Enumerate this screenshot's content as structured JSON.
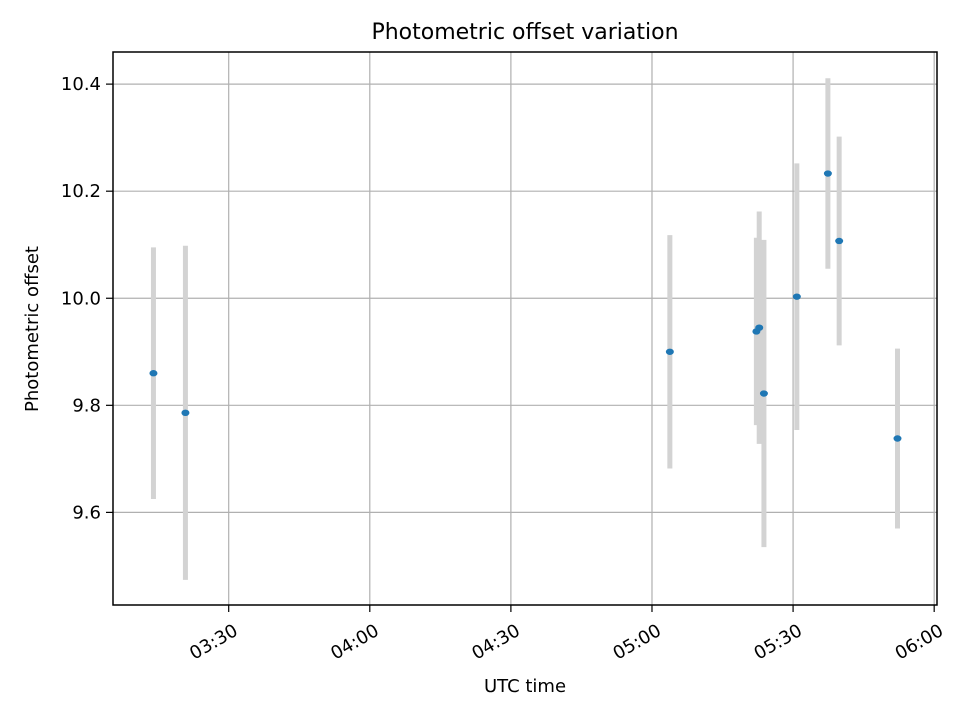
{
  "chart_data": {
    "type": "scatter",
    "title": "Photometric offset variation",
    "xlabel": "UTC time",
    "ylabel": "Photometric offset",
    "x_scale": "time",
    "xlim": [
      "03:05:24",
      "06:00:36"
    ],
    "ylim": [
      9.427,
      10.46
    ],
    "grid": true,
    "x_ticks": [
      "03:30",
      "04:00",
      "04:30",
      "05:00",
      "05:30",
      "06:00"
    ],
    "y_ticks": [
      9.6,
      9.8,
      10.0,
      10.2,
      10.4
    ],
    "marker_color": "#1f77b4",
    "errorbar_color": "#d3d3d3",
    "points": [
      {
        "time": "03:14:00",
        "y": 9.86,
        "ylow": 9.625,
        "yhigh": 10.095
      },
      {
        "time": "03:20:48",
        "y": 9.786,
        "ylow": 9.474,
        "yhigh": 10.098
      },
      {
        "time": "05:03:48",
        "y": 9.9,
        "ylow": 9.682,
        "yhigh": 10.118
      },
      {
        "time": "05:22:12",
        "y": 9.938,
        "ylow": 9.763,
        "yhigh": 10.113
      },
      {
        "time": "05:22:48",
        "y": 9.945,
        "ylow": 9.728,
        "yhigh": 10.162
      },
      {
        "time": "05:23:48",
        "y": 9.822,
        "ylow": 9.535,
        "yhigh": 10.109
      },
      {
        "time": "05:30:48",
        "y": 10.003,
        "ylow": 9.754,
        "yhigh": 10.252
      },
      {
        "time": "05:37:24",
        "y": 10.233,
        "ylow": 10.055,
        "yhigh": 10.411
      },
      {
        "time": "05:39:48",
        "y": 10.107,
        "ylow": 9.912,
        "yhigh": 10.302
      },
      {
        "time": "05:52:12",
        "y": 9.738,
        "ylow": 9.57,
        "yhigh": 9.906
      }
    ]
  }
}
